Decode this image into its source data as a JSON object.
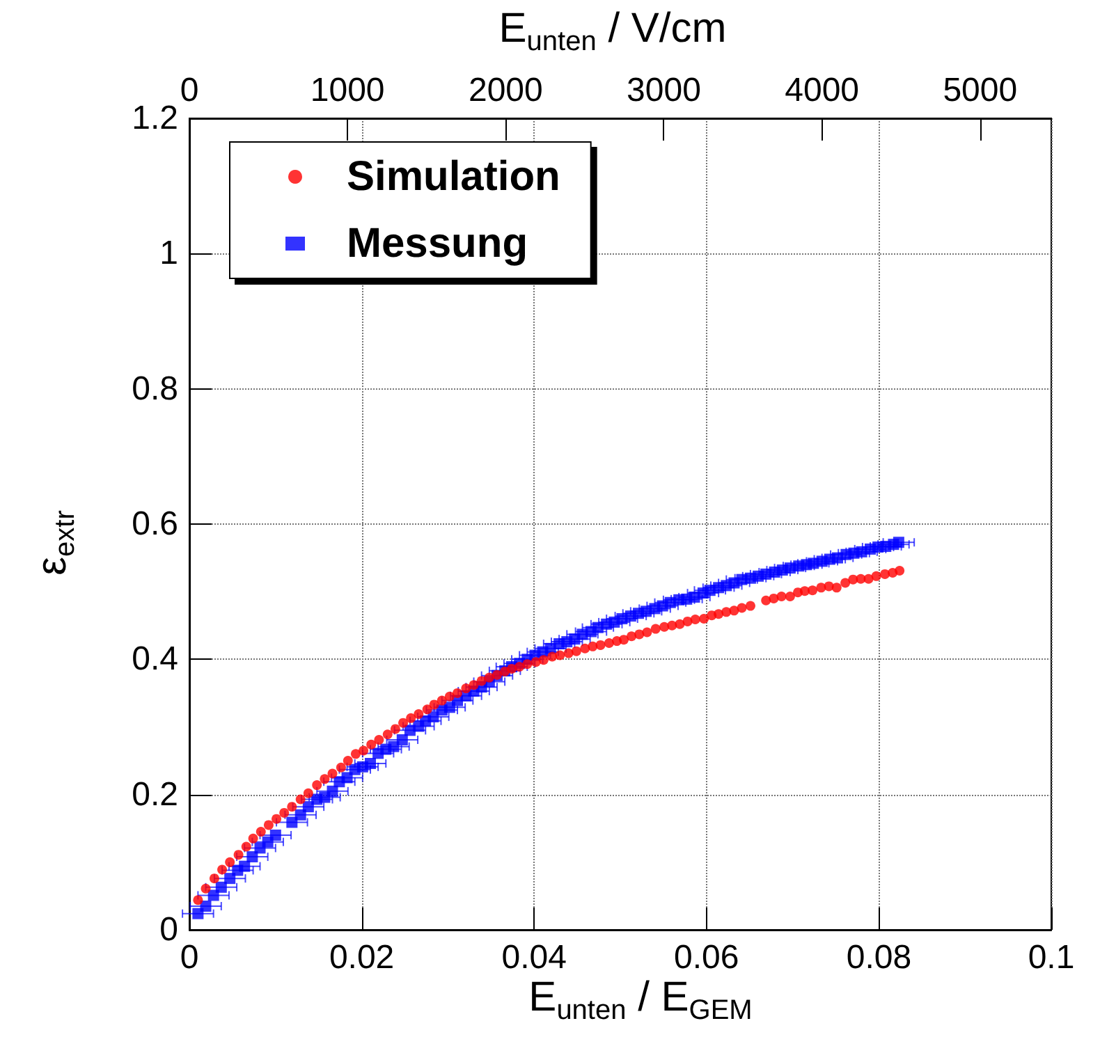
{
  "chart_data": {
    "type": "scatter",
    "xlabel": "E$_{unten}$ / E$_{GEM}$",
    "ylabel": "ε$_{extr}$",
    "x2label": "E$_{unten}$ / V/cm",
    "xlim": [
      0,
      0.1
    ],
    "xticks": [
      0,
      0.02,
      0.04,
      0.06,
      0.08,
      0.1
    ],
    "ylim": [
      0,
      1.2
    ],
    "yticks": [
      0,
      0.2,
      0.4,
      0.6,
      0.8,
      1,
      1.2
    ],
    "x2lim": [
      0,
      5450
    ],
    "x2ticks": [
      0,
      1000,
      2000,
      3000,
      4000,
      5000
    ],
    "grid": true,
    "legend": "top left",
    "series": [
      {
        "name": "Simulation",
        "color": "#ff0000",
        "marker": "circle",
        "x": [
          0.001,
          0.0019,
          0.0029,
          0.0038,
          0.0047,
          0.0057,
          0.0066,
          0.0074,
          0.0083,
          0.0092,
          0.0101,
          0.011,
          0.0119,
          0.0129,
          0.0138,
          0.0148,
          0.0157,
          0.0166,
          0.0176,
          0.0184,
          0.0193,
          0.0202,
          0.0211,
          0.022,
          0.023,
          0.0239,
          0.0248,
          0.0257,
          0.0266,
          0.0276,
          0.0284,
          0.0293,
          0.0302,
          0.0311,
          0.0321,
          0.033,
          0.0339,
          0.0348,
          0.0357,
          0.0366,
          0.0374,
          0.0383,
          0.0392,
          0.0402,
          0.0411,
          0.0421,
          0.043,
          0.044,
          0.0449,
          0.0459,
          0.0468,
          0.0477,
          0.0487,
          0.0496,
          0.0504,
          0.0513,
          0.0522,
          0.0531,
          0.0541,
          0.0551,
          0.056,
          0.0569,
          0.0578,
          0.0587,
          0.0597,
          0.0606,
          0.0614,
          0.0623,
          0.0632,
          0.0641,
          0.0651,
          0.0669,
          0.0678,
          0.0687,
          0.0697,
          0.0706,
          0.0714,
          0.0723,
          0.0733,
          0.0742,
          0.0751,
          0.0761,
          0.077,
          0.0779,
          0.0788,
          0.0797,
          0.0807,
          0.0816,
          0.0824
        ],
        "values": [
          0.044,
          0.061,
          0.076,
          0.089,
          0.1,
          0.111,
          0.123,
          0.135,
          0.145,
          0.155,
          0.164,
          0.173,
          0.182,
          0.193,
          0.202,
          0.214,
          0.223,
          0.231,
          0.24,
          0.25,
          0.26,
          0.265,
          0.274,
          0.281,
          0.289,
          0.297,
          0.306,
          0.313,
          0.319,
          0.326,
          0.333,
          0.339,
          0.345,
          0.35,
          0.357,
          0.362,
          0.368,
          0.373,
          0.377,
          0.382,
          0.386,
          0.389,
          0.393,
          0.396,
          0.399,
          0.404,
          0.406,
          0.409,
          0.412,
          0.416,
          0.419,
          0.421,
          0.424,
          0.427,
          0.429,
          0.434,
          0.437,
          0.44,
          0.445,
          0.448,
          0.45,
          0.452,
          0.456,
          0.459,
          0.46,
          0.465,
          0.467,
          0.47,
          0.472,
          0.476,
          0.479,
          0.487,
          0.49,
          0.493,
          0.493,
          0.499,
          0.501,
          0.502,
          0.506,
          0.508,
          0.506,
          0.513,
          0.518,
          0.519,
          0.519,
          0.523,
          0.526,
          0.528,
          0.531
        ]
      },
      {
        "name": "Messung",
        "color": "#0000ff",
        "marker": "square",
        "x": [
          0.001,
          0.0019,
          0.0028,
          0.0037,
          0.0047,
          0.0056,
          0.0064,
          0.0073,
          0.0082,
          0.0091,
          0.01,
          0.0119,
          0.0129,
          0.0138,
          0.0148,
          0.0157,
          0.0166,
          0.0174,
          0.0183,
          0.0192,
          0.0201,
          0.021,
          0.0219,
          0.0228,
          0.0237,
          0.0247,
          0.0256,
          0.0266,
          0.0274,
          0.0283,
          0.0293,
          0.0302,
          0.0311,
          0.0321,
          0.033,
          0.0339,
          0.0348,
          0.0357,
          0.0366,
          0.0374,
          0.0383,
          0.0392,
          0.0401,
          0.041,
          0.0419,
          0.0429,
          0.0438,
          0.0447,
          0.0456,
          0.0466,
          0.0474,
          0.0484,
          0.0493,
          0.0502,
          0.0512,
          0.0521,
          0.053,
          0.054,
          0.0549,
          0.0558,
          0.0568,
          0.0577,
          0.0586,
          0.0596,
          0.0604,
          0.0614,
          0.0623,
          0.0632,
          0.0641,
          0.0651,
          0.066,
          0.0669,
          0.0679,
          0.0688,
          0.0697,
          0.0707,
          0.0716,
          0.0724,
          0.0734,
          0.0743,
          0.0752,
          0.0762,
          0.0771,
          0.078,
          0.079,
          0.0799,
          0.0808,
          0.0817,
          0.0823
        ],
        "values": [
          0.024,
          0.035,
          0.051,
          0.063,
          0.076,
          0.088,
          0.094,
          0.108,
          0.121,
          0.13,
          0.14,
          0.159,
          0.17,
          0.182,
          0.193,
          0.196,
          0.205,
          0.219,
          0.225,
          0.237,
          0.241,
          0.246,
          0.261,
          0.267,
          0.271,
          0.281,
          0.295,
          0.301,
          0.309,
          0.315,
          0.325,
          0.329,
          0.339,
          0.346,
          0.353,
          0.359,
          0.367,
          0.376,
          0.383,
          0.389,
          0.394,
          0.4,
          0.406,
          0.411,
          0.416,
          0.423,
          0.426,
          0.43,
          0.437,
          0.441,
          0.447,
          0.452,
          0.455,
          0.46,
          0.464,
          0.468,
          0.471,
          0.475,
          0.479,
          0.484,
          0.488,
          0.489,
          0.492,
          0.498,
          0.502,
          0.506,
          0.509,
          0.513,
          0.518,
          0.52,
          0.523,
          0.526,
          0.529,
          0.532,
          0.535,
          0.538,
          0.54,
          0.542,
          0.545,
          0.548,
          0.55,
          0.555,
          0.557,
          0.559,
          0.563,
          0.566,
          0.567,
          0.57,
          0.573
        ],
        "xerrors": [
          0.0018,
          0.0018,
          0.0018,
          0.0018,
          0.0018,
          0.0018,
          0.0018,
          0.0018,
          0.0018,
          0.0018,
          0.0018,
          0.0018,
          0.0018,
          0.0018,
          0.0018,
          0.0018,
          0.0018,
          0.0018,
          0.0018,
          0.0018,
          0.0018,
          0.0018,
          0.0018,
          0.0018,
          0.0018,
          0.0018,
          0.0018,
          0.0018,
          0.0018,
          0.0018,
          0.0018,
          0.0018,
          0.0018,
          0.0018,
          0.0018,
          0.0018,
          0.0018,
          0.0018,
          0.0018,
          0.0018,
          0.0018,
          0.0018,
          0.0018,
          0.0018,
          0.0018,
          0.0018,
          0.0018,
          0.0018,
          0.0018,
          0.0018,
          0.0018,
          0.0018,
          0.0018,
          0.0018,
          0.0018,
          0.0018,
          0.0018,
          0.0018,
          0.0018,
          0.0018,
          0.0018,
          0.0018,
          0.0018,
          0.0018,
          0.0018,
          0.0018,
          0.0018,
          0.0018,
          0.0018,
          0.0018,
          0.0018,
          0.0018,
          0.0018,
          0.0018,
          0.0018,
          0.0018,
          0.0018,
          0.0018,
          0.0018,
          0.0018,
          0.0018,
          0.0018,
          0.0018,
          0.0018,
          0.0018,
          0.0018,
          0.0018,
          0.0018,
          0.0018
        ]
      }
    ]
  }
}
